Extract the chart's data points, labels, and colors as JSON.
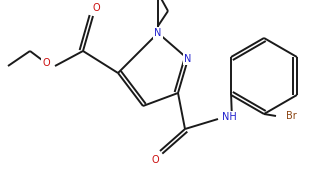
{
  "bg_color": "#ffffff",
  "bond_color": "#1a1a1a",
  "atom_colors": {
    "N": "#2020cd",
    "O": "#cc1010",
    "Br": "#8b4513"
  },
  "line_width": 1.4,
  "figsize": [
    3.26,
    1.81
  ],
  "dpi": 100,
  "xlim": [
    0,
    326
  ],
  "ylim": [
    0,
    181
  ]
}
